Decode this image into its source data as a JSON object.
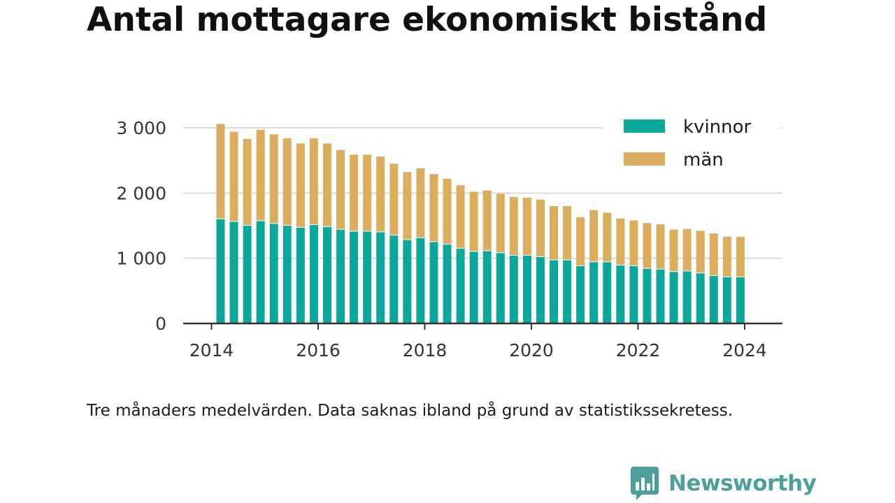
{
  "title": "Antal mottagare ekonomiskt bistånd",
  "caption": "Tre månaders medelvärden. Data saknas ibland på grund av statistikssekretess.",
  "brand": "Newsworthy",
  "colors": {
    "kvinnor": "#0aa79a",
    "man": "#dbae5f",
    "brand": "#4e9e9c",
    "grid": "#d9d9d9",
    "axis": "#333333"
  },
  "chart_data": {
    "type": "bar",
    "stacked": true,
    "x_start": 2014.17,
    "x_step": 0.25,
    "xlim": [
      2013.75,
      2024.4
    ],
    "ylim": [
      0,
      3000
    ],
    "yticks": [
      0,
      1000,
      2000,
      3000
    ],
    "ytick_labels": [
      "0",
      "1 000",
      "2 000",
      "3 000"
    ],
    "xticks": [
      2014,
      2016,
      2018,
      2020,
      2022,
      2024
    ],
    "xtick_labels": [
      "2014",
      "2016",
      "2018",
      "2020",
      "2022",
      "2024"
    ],
    "legend_position": "top-right",
    "grid": true,
    "series": [
      {
        "name": "kvinnor",
        "values": [
          1610,
          1570,
          1510,
          1580,
          1540,
          1510,
          1480,
          1520,
          1490,
          1450,
          1420,
          1420,
          1410,
          1360,
          1290,
          1320,
          1260,
          1220,
          1160,
          1110,
          1120,
          1090,
          1050,
          1050,
          1030,
          980,
          980,
          890,
          950,
          950,
          900,
          890,
          850,
          840,
          800,
          810,
          780,
          740,
          720,
          720
        ]
      },
      {
        "name": "män",
        "values": [
          1450,
          1370,
          1320,
          1390,
          1360,
          1330,
          1280,
          1320,
          1270,
          1210,
          1170,
          1170,
          1150,
          1090,
          1030,
          1060,
          1030,
          1000,
          960,
          910,
          920,
          900,
          890,
          880,
          870,
          820,
          820,
          740,
          790,
          750,
          710,
          690,
          690,
          680,
          640,
          640,
          640,
          640,
          610,
          610
        ]
      }
    ]
  }
}
